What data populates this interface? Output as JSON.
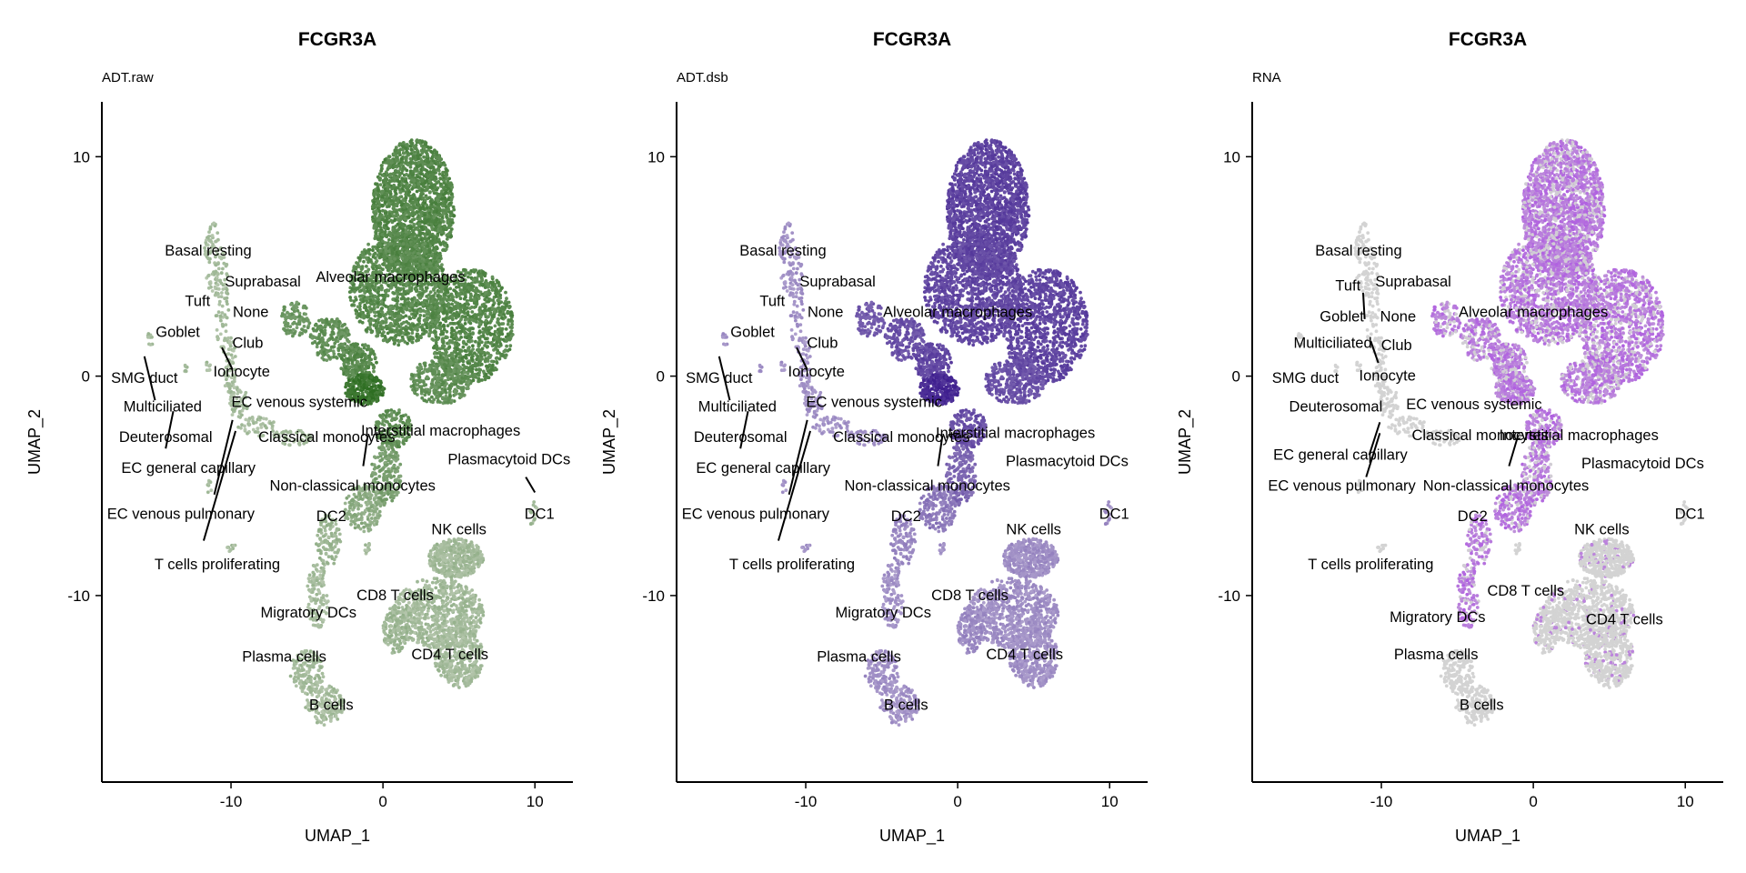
{
  "chart_data": [
    {
      "type": "scatter",
      "title": "FCGR3A",
      "subtitle": "ADT.raw",
      "xlabel": "UMAP_1",
      "ylabel": "UMAP_2",
      "xlim": [
        -18.5,
        12.5
      ],
      "ylim": [
        -18.5,
        12.5
      ],
      "xticks": [
        -10,
        0,
        10
      ],
      "yticks": [
        -10,
        0,
        10
      ],
      "grid": false,
      "legend": "none",
      "low_color": "#b8c8b0",
      "high_color": "#2e6e22",
      "clusters": [
        {
          "name": "Basal resting",
          "x": -11.5,
          "y": 5.7
        },
        {
          "name": "Suprabasal",
          "x": -7.9,
          "y": 4.3
        },
        {
          "name": "Alveolar macrophages",
          "x": 0.5,
          "y": 4.5
        },
        {
          "name": "Tuft",
          "x": -12.2,
          "y": 3.4
        },
        {
          "name": "None",
          "x": -8.7,
          "y": 2.9
        },
        {
          "name": "Goblet",
          "x": -13.5,
          "y": 2.0
        },
        {
          "name": "Club",
          "x": -8.9,
          "y": 1.5
        },
        {
          "name": "Ionocyte",
          "x": -9.3,
          "y": 0.2
        },
        {
          "name": "SMG duct",
          "x": -15.7,
          "y": -0.1
        },
        {
          "name": "EC venous systemic",
          "x": -5.5,
          "y": -1.2
        },
        {
          "name": "Multiciliated",
          "x": -14.5,
          "y": -1.4
        },
        {
          "name": "Classical monocytes",
          "x": -3.7,
          "y": -2.8
        },
        {
          "name": "Interstitial macrophages",
          "x": 3.8,
          "y": -2.5
        },
        {
          "name": "Deuterosomal",
          "x": -14.3,
          "y": -2.8
        },
        {
          "name": "Plasmacytoid DCs",
          "x": 8.3,
          "y": -3.8
        },
        {
          "name": "EC general capillary",
          "x": -12.8,
          "y": -4.2
        },
        {
          "name": "Non-classical monocytes",
          "x": -2.0,
          "y": -5.0
        },
        {
          "name": "EC venous pulmonary",
          "x": -13.3,
          "y": -6.3
        },
        {
          "name": "DC2",
          "x": -3.4,
          "y": -6.4
        },
        {
          "name": "DC1",
          "x": 10.3,
          "y": -6.3
        },
        {
          "name": "NK cells",
          "x": 5.0,
          "y": -7.0
        },
        {
          "name": "T cells proliferating",
          "x": -10.9,
          "y": -8.6
        },
        {
          "name": "CD8 T cells",
          "x": 0.8,
          "y": -10.0
        },
        {
          "name": "Migratory DCs",
          "x": -4.9,
          "y": -10.8
        },
        {
          "name": "Plasma cells",
          "x": -6.5,
          "y": -12.8
        },
        {
          "name": "CD4 T cells",
          "x": 4.4,
          "y": -12.7
        },
        {
          "name": "B cells",
          "x": -3.4,
          "y": -15.0
        }
      ]
    },
    {
      "type": "scatter",
      "title": "FCGR3A",
      "subtitle": "ADT.dsb",
      "xlabel": "UMAP_1",
      "ylabel": "UMAP_2",
      "xlim": [
        -18.5,
        12.5
      ],
      "ylim": [
        -18.5,
        12.5
      ],
      "xticks": [
        -10,
        0,
        10
      ],
      "yticks": [
        -10,
        0,
        10
      ],
      "grid": false,
      "legend": "none",
      "low_color": "#b1a3cf",
      "high_color": "#3f1f8f",
      "clusters": [
        {
          "name": "Basal resting",
          "x": -11.5,
          "y": 5.7
        },
        {
          "name": "Suprabasal",
          "x": -7.9,
          "y": 4.3
        },
        {
          "name": "Tuft",
          "x": -12.2,
          "y": 3.4
        },
        {
          "name": "None",
          "x": -8.7,
          "y": 2.9
        },
        {
          "name": "Alveolar macrophages",
          "x": 0.0,
          "y": 2.9
        },
        {
          "name": "Goblet",
          "x": -13.5,
          "y": 2.0
        },
        {
          "name": "Club",
          "x": -8.9,
          "y": 1.5
        },
        {
          "name": "Ionocyte",
          "x": -9.3,
          "y": 0.2
        },
        {
          "name": "SMG duct",
          "x": -15.7,
          "y": -0.1
        },
        {
          "name": "EC venous systemic",
          "x": -5.5,
          "y": -1.2
        },
        {
          "name": "Multiciliated",
          "x": -14.5,
          "y": -1.4
        },
        {
          "name": "Classical monocytes",
          "x": -3.7,
          "y": -2.8
        },
        {
          "name": "Interstitial macrophages",
          "x": 3.8,
          "y": -2.6
        },
        {
          "name": "Deuterosomal",
          "x": -14.3,
          "y": -2.8
        },
        {
          "name": "Plasmacytoid DCs",
          "x": 7.2,
          "y": -3.9
        },
        {
          "name": "EC general capillary",
          "x": -12.8,
          "y": -4.2
        },
        {
          "name": "Non-classical monocytes",
          "x": -2.0,
          "y": -5.0
        },
        {
          "name": "EC venous pulmonary",
          "x": -13.3,
          "y": -6.3
        },
        {
          "name": "DC2",
          "x": -3.4,
          "y": -6.4
        },
        {
          "name": "DC1",
          "x": 10.3,
          "y": -6.3
        },
        {
          "name": "NK cells",
          "x": 5.0,
          "y": -7.0
        },
        {
          "name": "T cells proliferating",
          "x": -10.9,
          "y": -8.6
        },
        {
          "name": "CD8 T cells",
          "x": 0.8,
          "y": -10.0
        },
        {
          "name": "Migratory DCs",
          "x": -4.9,
          "y": -10.8
        },
        {
          "name": "Plasma cells",
          "x": -6.5,
          "y": -12.8
        },
        {
          "name": "CD4 T cells",
          "x": 4.4,
          "y": -12.7
        },
        {
          "name": "B cells",
          "x": -3.4,
          "y": -15.0
        }
      ]
    },
    {
      "type": "scatter",
      "title": "FCGR3A",
      "subtitle": "RNA",
      "xlabel": "UMAP_1",
      "ylabel": "UMAP_2",
      "xlim": [
        -18.5,
        12.5
      ],
      "ylim": [
        -18.5,
        12.5
      ],
      "xticks": [
        -10,
        0,
        10
      ],
      "yticks": [
        -10,
        0,
        10
      ],
      "grid": false,
      "legend": "none",
      "low_color": "#d3d3d3",
      "high_color": "#b060e0",
      "clusters": [
        {
          "name": "Basal resting",
          "x": -11.5,
          "y": 5.7
        },
        {
          "name": "Suprabasal",
          "x": -7.9,
          "y": 4.3
        },
        {
          "name": "Tuft",
          "x": -12.2,
          "y": 4.1
        },
        {
          "name": "None",
          "x": -8.9,
          "y": 2.7
        },
        {
          "name": "Alveolar macrophages",
          "x": 0.0,
          "y": 2.9
        },
        {
          "name": "Goblet",
          "x": -12.6,
          "y": 2.7
        },
        {
          "name": "Multiciliated",
          "x": -13.2,
          "y": 1.5
        },
        {
          "name": "Club",
          "x": -9.0,
          "y": 1.4
        },
        {
          "name": "Ionocyte",
          "x": -9.6,
          "y": 0.0
        },
        {
          "name": "SMG duct",
          "x": -15.0,
          "y": -0.1
        },
        {
          "name": "EC venous systemic",
          "x": -3.9,
          "y": -1.3
        },
        {
          "name": "Deuterosomal",
          "x": -13.0,
          "y": -1.4
        },
        {
          "name": "Classical monocytes",
          "x": -3.5,
          "y": -2.7
        },
        {
          "name": "Interstitial macrophages",
          "x": 3.0,
          "y": -2.7
        },
        {
          "name": "Plasmacytoid DCs",
          "x": 7.2,
          "y": -4.0
        },
        {
          "name": "EC general capillary",
          "x": -12.7,
          "y": -3.6
        },
        {
          "name": "EC venous pulmonary",
          "x": -12.6,
          "y": -5.0
        },
        {
          "name": "Non-classical monocytes",
          "x": -1.8,
          "y": -5.0
        },
        {
          "name": "DC2",
          "x": -4.0,
          "y": -6.4
        },
        {
          "name": "DC1",
          "x": 10.3,
          "y": -6.3
        },
        {
          "name": "NK cells",
          "x": 4.5,
          "y": -7.0
        },
        {
          "name": "T cells proliferating",
          "x": -10.7,
          "y": -8.6
        },
        {
          "name": "CD8 T cells",
          "x": -0.5,
          "y": -9.8
        },
        {
          "name": "Migratory DCs",
          "x": -6.3,
          "y": -11.0
        },
        {
          "name": "CD4 T cells",
          "x": 6.0,
          "y": -11.1
        },
        {
          "name": "Plasma cells",
          "x": -6.4,
          "y": -12.7
        },
        {
          "name": "B cells",
          "x": -3.4,
          "y": -15.0
        }
      ]
    }
  ]
}
